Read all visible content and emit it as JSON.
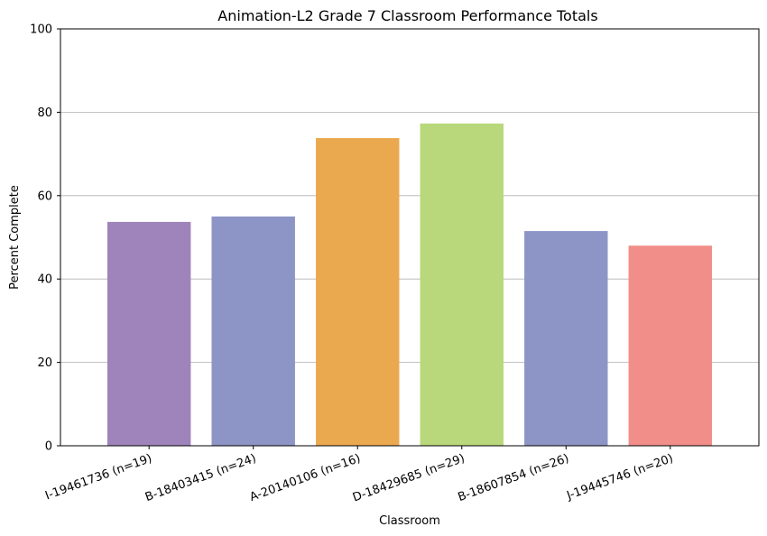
{
  "chart_data": {
    "type": "bar",
    "title": "Animation-L2 Grade 7 Classroom Performance Totals",
    "xlabel": "Classroom",
    "ylabel": "Percent Complete",
    "ylim": [
      0,
      100
    ],
    "yticks": [
      0,
      20,
      40,
      60,
      80,
      100
    ],
    "grid": "horizontal",
    "legend": "none",
    "categories": [
      "I-19461736 (n=19)",
      "B-18403415 (n=24)",
      "A-20140106 (n=16)",
      "D-18429685 (n=29)",
      "B-18607854 (n=26)",
      "J-19445746 (n=20)"
    ],
    "values": [
      53.7,
      55.0,
      73.8,
      77.3,
      51.5,
      48.0
    ],
    "colors": [
      "#9f84bb",
      "#8c95c6",
      "#eba94f",
      "#b8d87b",
      "#8c95c6",
      "#f28e89"
    ]
  }
}
